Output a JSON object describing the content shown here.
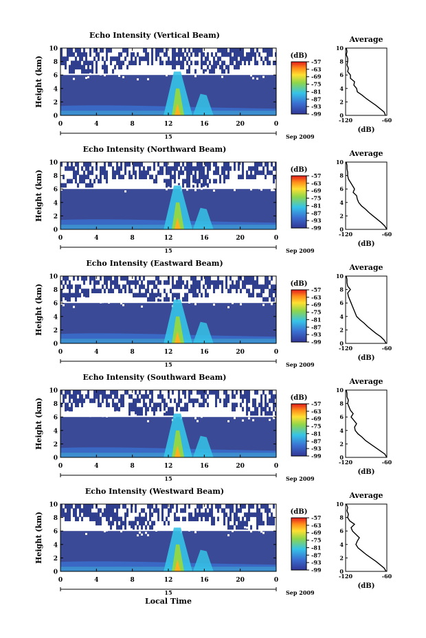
{
  "figure": {
    "xlabel_common": "Local Time",
    "date_label": "Sep 2009",
    "date_day": "15"
  },
  "chart_data": [
    {
      "type": "heatmap",
      "title": "Echo Intensity (Vertical Beam)",
      "ylabel": "Height (km)",
      "ylim": [
        0,
        10
      ],
      "yticks": [
        "0",
        "2",
        "4",
        "6",
        "8",
        "10"
      ],
      "xlim": [
        0,
        24
      ],
      "xticks": [
        "0",
        "4",
        "8",
        "12",
        "16",
        "20",
        "0"
      ],
      "colorbar": {
        "label": "(dB)",
        "ticks": [
          "-57",
          "-63",
          "-69",
          "-75",
          "-81",
          "-87",
          "-93",
          "-99"
        ],
        "range": [
          -99,
          -57
        ]
      },
      "average_profile": {
        "title": "Average",
        "xlabel": "(dB)",
        "xlim": [
          -120,
          -60
        ],
        "xticks": [
          "-120",
          "-60"
        ],
        "ylim": [
          0,
          10
        ],
        "x": [
          -62,
          -64,
          -70,
          -76,
          -83,
          -90,
          -96,
          -103,
          -104,
          -108,
          -107,
          -113,
          -113,
          -117,
          -116,
          -118,
          -117,
          -117,
          -119,
          -118,
          -119
        ],
        "y": [
          0,
          0.5,
          1,
          1.5,
          2,
          2.5,
          3,
          3.5,
          4,
          4.5,
          5,
          5.5,
          6,
          6.5,
          7,
          7.5,
          8,
          8.5,
          9,
          9.5,
          10
        ]
      }
    },
    {
      "type": "heatmap",
      "title": "Echo Intensity (Northward Beam)",
      "ylabel": "Height (km)",
      "ylim": [
        0,
        10
      ],
      "yticks": [
        "0",
        "2",
        "4",
        "6",
        "8",
        "10"
      ],
      "xlim": [
        0,
        24
      ],
      "xticks": [
        "0",
        "4",
        "8",
        "12",
        "16",
        "20",
        "0"
      ],
      "colorbar": {
        "label": "(dB)",
        "ticks": [
          "-57",
          "-63",
          "-69",
          "-75",
          "-81",
          "-87",
          "-93",
          "-99"
        ],
        "range": [
          -99,
          -57
        ]
      },
      "average_profile": {
        "title": "Average",
        "xlabel": "(dB)",
        "xlim": [
          -120,
          -60
        ],
        "xticks": [
          "-120",
          "-60"
        ],
        "ylim": [
          0,
          10
        ],
        "x": [
          -60,
          -63,
          -68,
          -74,
          -80,
          -86,
          -91,
          -97,
          -101,
          -103,
          -104,
          -109,
          -107,
          -110,
          -113,
          -116,
          -117,
          -117,
          -118,
          -118,
          -119
        ],
        "y": [
          0,
          0.5,
          1,
          1.5,
          2,
          2.5,
          3,
          3.5,
          4,
          4.5,
          5,
          5.5,
          6,
          6.5,
          7,
          7.5,
          8,
          8.5,
          9,
          9.5,
          10
        ]
      }
    },
    {
      "type": "heatmap",
      "title": "Echo Intensity (Eastward Beam)",
      "ylabel": "Height (km)",
      "ylim": [
        0,
        10
      ],
      "yticks": [
        "0",
        "2",
        "4",
        "6",
        "8",
        "10"
      ],
      "xlim": [
        0,
        24
      ],
      "xticks": [
        "0",
        "4",
        "8",
        "12",
        "16",
        "20",
        "0"
      ],
      "colorbar": {
        "label": "(dB)",
        "ticks": [
          "-57",
          "-63",
          "-69",
          "-75",
          "-81",
          "-87",
          "-93",
          "-99"
        ],
        "range": [
          -99,
          -57
        ]
      },
      "average_profile": {
        "title": "Average",
        "xlabel": "(dB)",
        "xlim": [
          -120,
          -60
        ],
        "xticks": [
          "-120",
          "-60"
        ],
        "ylim": [
          0,
          10
        ],
        "x": [
          -61,
          -64,
          -69,
          -76,
          -82,
          -88,
          -93,
          -99,
          -104,
          -106,
          -108,
          -110,
          -112,
          -114,
          -116,
          -117,
          -113,
          -117,
          -118,
          -118,
          -119
        ],
        "y": [
          0,
          0.5,
          1,
          1.5,
          2,
          2.5,
          3,
          3.5,
          4,
          4.5,
          5,
          5.5,
          6,
          6.5,
          7,
          7.5,
          8,
          8.5,
          9,
          9.5,
          10
        ]
      }
    },
    {
      "type": "heatmap",
      "title": "Echo Intensity (Southward Beam)",
      "ylabel": "Height (km)",
      "ylim": [
        0,
        10
      ],
      "yticks": [
        "0",
        "2",
        "4",
        "6",
        "8",
        "10"
      ],
      "xlim": [
        0,
        24
      ],
      "xticks": [
        "0",
        "4",
        "8",
        "12",
        "16",
        "20",
        "0"
      ],
      "colorbar": {
        "label": "(dB)",
        "ticks": [
          "-57",
          "-63",
          "-69",
          "-75",
          "-81",
          "-87",
          "-93",
          "-99"
        ],
        "range": [
          -99,
          -57
        ]
      },
      "average_profile": {
        "title": "Average",
        "xlabel": "(dB)",
        "xlim": [
          -120,
          -60
        ],
        "xticks": [
          "-120",
          "-60"
        ],
        "ylim": [
          0,
          10
        ],
        "x": [
          -60,
          -63,
          -70,
          -77,
          -84,
          -91,
          -96,
          -102,
          -106,
          -107,
          -104,
          -108,
          -112,
          -109,
          -113,
          -115,
          -117,
          -116,
          -118,
          -118,
          -119
        ],
        "y": [
          0,
          0.5,
          1,
          1.5,
          2,
          2.5,
          3,
          3.5,
          4,
          4.5,
          5,
          5.5,
          6,
          6.5,
          7,
          7.5,
          8,
          8.5,
          9,
          9.5,
          10
        ]
      }
    },
    {
      "type": "heatmap",
      "title": "Echo Intensity (Westward Beam)",
      "ylabel": "Height (km)",
      "ylim": [
        0,
        10
      ],
      "yticks": [
        "0",
        "2",
        "4",
        "6",
        "8",
        "10"
      ],
      "xlim": [
        0,
        24
      ],
      "xticks": [
        "0",
        "4",
        "8",
        "12",
        "16",
        "20",
        "0"
      ],
      "colorbar": {
        "label": "(dB)",
        "ticks": [
          "-57",
          "-63",
          "-69",
          "-75",
          "-81",
          "-87",
          "-93",
          "-99"
        ],
        "range": [
          -99,
          -57
        ]
      },
      "average_profile": {
        "title": "Average",
        "xlabel": "(dB)",
        "xlim": [
          -120,
          -60
        ],
        "xticks": [
          "-120",
          "-60"
        ],
        "ylim": [
          0,
          10
        ],
        "x": [
          -61,
          -64,
          -70,
          -76,
          -83,
          -90,
          -96,
          -102,
          -105,
          -103,
          -100,
          -105,
          -110,
          -112,
          -107,
          -114,
          -117,
          -116,
          -118,
          -117,
          -119
        ],
        "y": [
          0,
          0.5,
          1,
          1.5,
          2,
          2.5,
          3,
          3.5,
          4,
          4.5,
          5,
          5.5,
          6,
          6.5,
          7,
          7.5,
          8,
          8.5,
          9,
          9.5,
          10
        ]
      }
    }
  ]
}
